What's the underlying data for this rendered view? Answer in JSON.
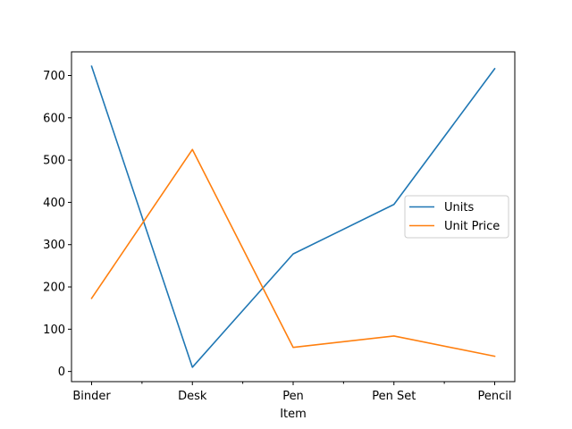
{
  "chart_data": {
    "type": "line",
    "title": "",
    "xlabel": "Item",
    "ylabel": "",
    "categories": [
      "Binder",
      "Desk",
      "Pen",
      "Pen Set",
      "Pencil"
    ],
    "minor_ticks_between_categories": true,
    "series": [
      {
        "name": "Units",
        "color": "#1f77b4",
        "values": [
          722,
          10,
          278,
          395,
          716
        ]
      },
      {
        "name": "Unit Price",
        "color": "#ff7f0e",
        "values": [
          173,
          525,
          57,
          84,
          36
        ]
      }
    ],
    "ylim": [
      -24,
      756
    ],
    "yticks": [
      0,
      100,
      200,
      300,
      400,
      500,
      600,
      700
    ],
    "grid": false,
    "legend_position": "center-right"
  }
}
